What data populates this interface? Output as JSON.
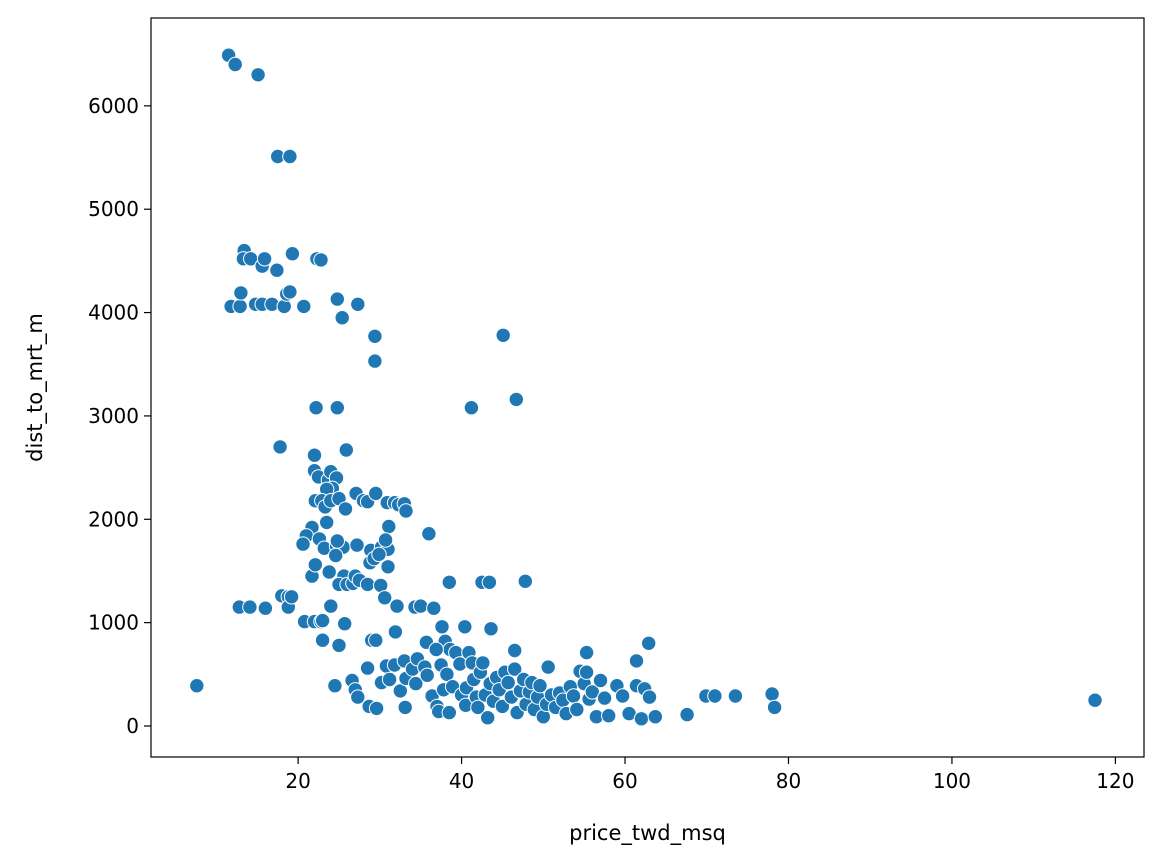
{
  "chart_data": {
    "type": "scatter",
    "xlabel": "price_twd_msq",
    "ylabel": "dist_to_mrt_m",
    "xlim": [
      2,
      123.5
    ],
    "ylim": [
      -300,
      6850
    ],
    "xticks": [
      20,
      40,
      60,
      80,
      100,
      120
    ],
    "yticks": [
      0,
      1000,
      2000,
      3000,
      4000,
      5000,
      6000
    ],
    "grid": false,
    "marker_color": "#1f77b4",
    "points": [
      [
        11.5,
        6490
      ],
      [
        12.3,
        6400
      ],
      [
        15.1,
        6300
      ],
      [
        17.5,
        5510
      ],
      [
        19.0,
        5510
      ],
      [
        13.4,
        4600
      ],
      [
        13.3,
        4520
      ],
      [
        14.2,
        4520
      ],
      [
        15.6,
        4450
      ],
      [
        15.9,
        4520
      ],
      [
        17.4,
        4410
      ],
      [
        19.3,
        4570
      ],
      [
        22.3,
        4520
      ],
      [
        22.8,
        4510
      ],
      [
        11.8,
        4060
      ],
      [
        12.9,
        4060
      ],
      [
        13.0,
        4190
      ],
      [
        14.8,
        4080
      ],
      [
        15.6,
        4080
      ],
      [
        16.8,
        4080
      ],
      [
        18.3,
        4060
      ],
      [
        18.6,
        4180
      ],
      [
        19.0,
        4200
      ],
      [
        20.7,
        4060
      ],
      [
        24.8,
        4130
      ],
      [
        25.4,
        3950
      ],
      [
        27.3,
        4080
      ],
      [
        29.4,
        3770
      ],
      [
        29.4,
        3530
      ],
      [
        45.1,
        3780
      ],
      [
        22.2,
        3080
      ],
      [
        24.8,
        3080
      ],
      [
        41.2,
        3080
      ],
      [
        46.7,
        3160
      ],
      [
        17.8,
        2700
      ],
      [
        22.0,
        2620
      ],
      [
        25.9,
        2670
      ],
      [
        22.0,
        2470
      ],
      [
        22.5,
        2410
      ],
      [
        23.7,
        2380
      ],
      [
        24.0,
        2460
      ],
      [
        24.7,
        2400
      ],
      [
        24.2,
        2300
      ],
      [
        23.5,
        2290
      ],
      [
        22.1,
        2180
      ],
      [
        22.9,
        2180
      ],
      [
        23.3,
        2120
      ],
      [
        24.0,
        2180
      ],
      [
        25.0,
        2200
      ],
      [
        25.8,
        2100
      ],
      [
        27.1,
        2250
      ],
      [
        28.0,
        2180
      ],
      [
        28.5,
        2170
      ],
      [
        29.5,
        2250
      ],
      [
        30.9,
        2160
      ],
      [
        31.8,
        2160
      ],
      [
        32.3,
        2140
      ],
      [
        33.0,
        2150
      ],
      [
        33.2,
        2080
      ],
      [
        23.5,
        1970
      ],
      [
        21.7,
        1920
      ],
      [
        21.0,
        1840
      ],
      [
        20.6,
        1760
      ],
      [
        22.6,
        1810
      ],
      [
        23.2,
        1720
      ],
      [
        24.7,
        1740
      ],
      [
        25.5,
        1730
      ],
      [
        27.2,
        1750
      ],
      [
        28.9,
        1700
      ],
      [
        30.2,
        1730
      ],
      [
        31.0,
        1710
      ],
      [
        31.1,
        1930
      ],
      [
        30.7,
        1800
      ],
      [
        36.0,
        1860
      ],
      [
        21.7,
        1450
      ],
      [
        22.1,
        1560
      ],
      [
        23.8,
        1490
      ],
      [
        24.6,
        1650
      ],
      [
        24.8,
        1790
      ],
      [
        25.6,
        1450
      ],
      [
        25.0,
        1370
      ],
      [
        26.0,
        1370
      ],
      [
        26.7,
        1380
      ],
      [
        27.0,
        1450
      ],
      [
        27.5,
        1410
      ],
      [
        28.5,
        1370
      ],
      [
        28.8,
        1580
      ],
      [
        29.3,
        1620
      ],
      [
        29.9,
        1660
      ],
      [
        30.1,
        1360
      ],
      [
        30.6,
        1240
      ],
      [
        31.0,
        1540
      ],
      [
        32.1,
        1160
      ],
      [
        34.3,
        1150
      ],
      [
        35.0,
        1160
      ],
      [
        36.6,
        1140
      ],
      [
        38.5,
        1390
      ],
      [
        42.5,
        1390
      ],
      [
        43.4,
        1390
      ],
      [
        47.8,
        1400
      ],
      [
        12.8,
        1150
      ],
      [
        14.1,
        1150
      ],
      [
        16.0,
        1140
      ],
      [
        18.0,
        1260
      ],
      [
        18.8,
        1250
      ],
      [
        18.8,
        1150
      ],
      [
        19.2,
        1250
      ],
      [
        20.8,
        1010
      ],
      [
        22.0,
        1010
      ],
      [
        22.8,
        1010
      ],
      [
        23.0,
        1020
      ],
      [
        24.0,
        1160
      ],
      [
        25.7,
        990
      ],
      [
        23.0,
        830
      ],
      [
        25.0,
        780
      ],
      [
        29.0,
        830
      ],
      [
        29.5,
        830
      ],
      [
        31.9,
        910
      ],
      [
        35.7,
        810
      ],
      [
        37.6,
        960
      ],
      [
        38.0,
        820
      ],
      [
        38.6,
        740
      ],
      [
        40.4,
        960
      ],
      [
        43.6,
        940
      ],
      [
        46.5,
        730
      ],
      [
        55.3,
        710
      ],
      [
        61.4,
        630
      ],
      [
        62.9,
        800
      ],
      [
        7.6,
        390
      ],
      [
        24.5,
        390
      ],
      [
        26.6,
        440
      ],
      [
        27.0,
        350
      ],
      [
        27.3,
        280
      ],
      [
        28.5,
        560
      ],
      [
        28.7,
        190
      ],
      [
        29.6,
        170
      ],
      [
        30.2,
        420
      ],
      [
        30.8,
        580
      ],
      [
        31.2,
        450
      ],
      [
        31.8,
        590
      ],
      [
        32.5,
        340
      ],
      [
        33.0,
        630
      ],
      [
        33.2,
        460
      ],
      [
        33.1,
        180
      ],
      [
        34.0,
        550
      ],
      [
        34.6,
        650
      ],
      [
        34.4,
        410
      ],
      [
        35.5,
        570
      ],
      [
        35.8,
        490
      ],
      [
        36.4,
        290
      ],
      [
        36.9,
        740
      ],
      [
        37.0,
        190
      ],
      [
        37.2,
        140
      ],
      [
        37.5,
        590
      ],
      [
        37.8,
        350
      ],
      [
        38.2,
        500
      ],
      [
        38.5,
        130
      ],
      [
        38.9,
        380
      ],
      [
        39.3,
        710
      ],
      [
        39.8,
        600
      ],
      [
        40.0,
        300
      ],
      [
        40.5,
        200
      ],
      [
        40.6,
        370
      ],
      [
        40.9,
        710
      ],
      [
        41.3,
        610
      ],
      [
        41.5,
        450
      ],
      [
        41.8,
        280
      ],
      [
        42.0,
        180
      ],
      [
        42.3,
        520
      ],
      [
        42.6,
        610
      ],
      [
        42.9,
        300
      ],
      [
        43.2,
        80
      ],
      [
        43.5,
        410
      ],
      [
        43.9,
        240
      ],
      [
        44.3,
        470
      ],
      [
        44.6,
        350
      ],
      [
        45.0,
        190
      ],
      [
        45.3,
        520
      ],
      [
        45.7,
        420
      ],
      [
        46.1,
        280
      ],
      [
        46.5,
        550
      ],
      [
        46.8,
        130
      ],
      [
        47.2,
        340
      ],
      [
        47.6,
        450
      ],
      [
        47.9,
        210
      ],
      [
        48.3,
        330
      ],
      [
        48.6,
        420
      ],
      [
        48.9,
        160
      ],
      [
        49.3,
        280
      ],
      [
        49.6,
        390
      ],
      [
        50.0,
        90
      ],
      [
        50.4,
        210
      ],
      [
        50.6,
        570
      ],
      [
        51.0,
        300
      ],
      [
        51.5,
        180
      ],
      [
        52.0,
        320
      ],
      [
        52.4,
        250
      ],
      [
        52.8,
        120
      ],
      [
        53.3,
        380
      ],
      [
        53.7,
        290
      ],
      [
        54.1,
        160
      ],
      [
        54.5,
        530
      ],
      [
        55.0,
        410
      ],
      [
        55.3,
        520
      ],
      [
        55.6,
        260
      ],
      [
        56.0,
        330
      ],
      [
        56.5,
        90
      ],
      [
        57.0,
        440
      ],
      [
        57.5,
        270
      ],
      [
        58.0,
        100
      ],
      [
        59.0,
        390
      ],
      [
        59.7,
        290
      ],
      [
        60.5,
        120
      ],
      [
        61.4,
        390
      ],
      [
        62.0,
        70
      ],
      [
        62.4,
        360
      ],
      [
        63.0,
        280
      ],
      [
        63.7,
        90
      ],
      [
        67.6,
        110
      ],
      [
        69.9,
        290
      ],
      [
        71.0,
        290
      ],
      [
        73.5,
        290
      ],
      [
        78.0,
        310
      ],
      [
        78.3,
        180
      ],
      [
        117.5,
        250
      ]
    ]
  }
}
